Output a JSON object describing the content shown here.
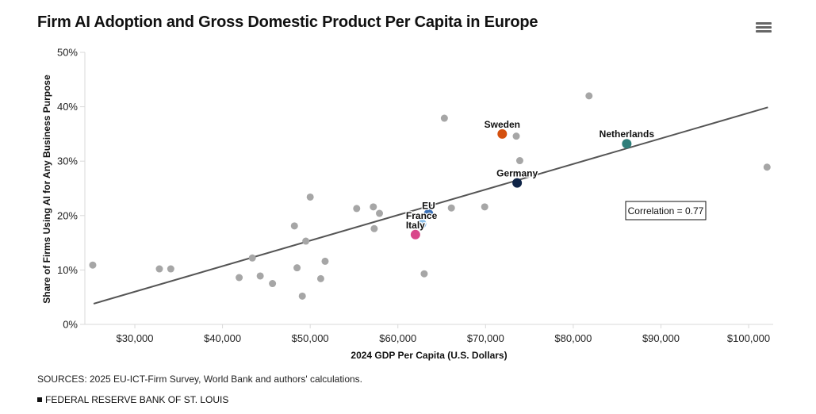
{
  "header": {
    "title": "Firm AI Adoption and Gross Domestic Product Per Capita in Europe",
    "menu_icon": "hamburger-menu-icon"
  },
  "footer": {
    "sources": "SOURCES: 2025 EU-ICT-Firm Survey, World Bank and authors' calculations.",
    "brand": "FEDERAL RESERVE BANK OF ST. LOUIS"
  },
  "chart_data": {
    "type": "scatter",
    "title": "Firm AI Adoption and Gross Domestic Product Per Capita in Europe",
    "xlabel": "2024 GDP Per Capita (U.S. Dollars)",
    "ylabel": "Share of Firms Using AI for Any Business Purpose",
    "xlim": [
      24300,
      102800
    ],
    "ylim": [
      0,
      50
    ],
    "x_ticks": [
      30000,
      40000,
      50000,
      60000,
      70000,
      80000,
      90000,
      100000
    ],
    "x_tick_labels": [
      "$30,000",
      "$40,000",
      "$50,000",
      "$60,000",
      "$70,000",
      "$80,000",
      "$90,000",
      "$100,000"
    ],
    "y_ticks": [
      0,
      10,
      20,
      30,
      40,
      50
    ],
    "y_tick_labels": [
      "0%",
      "10%",
      "20%",
      "30%",
      "40%",
      "50%"
    ],
    "grid": false,
    "annotation": "Correlation = 0.77",
    "trendline": {
      "x": [
        25300,
        102200
      ],
      "y": [
        3.8,
        39.9
      ],
      "color": "#555555"
    },
    "other_color": "#a6a6a6",
    "points": [
      {
        "x": 25200,
        "y": 10.9
      },
      {
        "x": 32800,
        "y": 10.2
      },
      {
        "x": 34100,
        "y": 10.2
      },
      {
        "x": 41900,
        "y": 8.6
      },
      {
        "x": 43400,
        "y": 12.2
      },
      {
        "x": 44300,
        "y": 8.9
      },
      {
        "x": 45700,
        "y": 7.5
      },
      {
        "x": 48200,
        "y": 18.1
      },
      {
        "x": 48500,
        "y": 10.4
      },
      {
        "x": 49100,
        "y": 5.2
      },
      {
        "x": 49500,
        "y": 15.3
      },
      {
        "x": 50000,
        "y": 23.4
      },
      {
        "x": 51200,
        "y": 8.4
      },
      {
        "x": 51700,
        "y": 11.6
      },
      {
        "x": 55300,
        "y": 21.3
      },
      {
        "x": 57200,
        "y": 21.6
      },
      {
        "x": 57300,
        "y": 17.6
      },
      {
        "x": 57900,
        "y": 20.4
      },
      {
        "x": 63000,
        "y": 9.3
      },
      {
        "x": 65300,
        "y": 37.9
      },
      {
        "x": 66100,
        "y": 21.4
      },
      {
        "x": 69900,
        "y": 21.6
      },
      {
        "x": 73500,
        "y": 34.6
      },
      {
        "x": 73900,
        "y": 30.1
      },
      {
        "x": 81800,
        "y": 42.0
      },
      {
        "x": 102100,
        "y": 28.9
      }
    ],
    "highlighted": [
      {
        "name": "Sweden",
        "x": 71900,
        "y": 35.0,
        "color": "#d4500f",
        "label_anchor": "middle",
        "label_dy": -8
      },
      {
        "name": "Netherlands",
        "x": 86100,
        "y": 33.2,
        "color": "#2f7e7a",
        "label_anchor": "middle",
        "label_dy": -8
      },
      {
        "name": "Germany",
        "x": 73600,
        "y": 26.0,
        "color": "#0f2447",
        "label_anchor": "middle",
        "label_dy": -8
      },
      {
        "name": "EU",
        "x": 63500,
        "y": 20.3,
        "color": "#3a6fb5",
        "label_anchor": "middle",
        "label_dy": -6
      },
      {
        "name": "France",
        "x": 62700,
        "y": 18.5,
        "color": "#8cc0ea",
        "label_anchor": "middle",
        "label_dy": -6
      },
      {
        "name": "Italy",
        "x": 62000,
        "y": 16.5,
        "color": "#d9468a",
        "label_anchor": "middle",
        "label_dy": -8
      }
    ]
  }
}
